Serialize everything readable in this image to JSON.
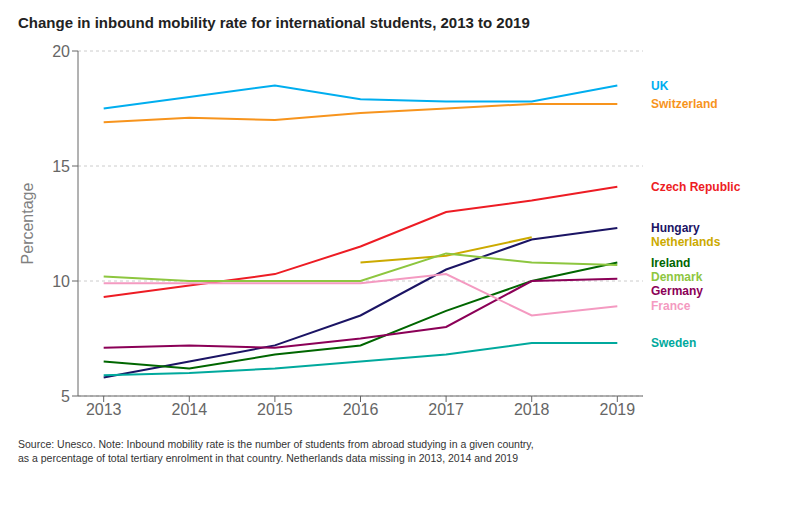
{
  "chart_data": {
    "type": "line",
    "title": "Change in inbound mobility rate for international students, 2013 to 2019",
    "ylabel": "Percentage",
    "x": [
      2013,
      2014,
      2015,
      2016,
      2017,
      2018,
      2019
    ],
    "xlim": [
      2012.7,
      2019.3
    ],
    "xticks": [
      2013,
      2014,
      2015,
      2016,
      2017,
      2018,
      2019
    ],
    "ylim": [
      5,
      20
    ],
    "yticks": [
      5,
      10,
      15,
      20
    ],
    "grid": true,
    "series": [
      {
        "name": "UK",
        "color": "#00aeef",
        "values": [
          17.5,
          18.0,
          18.5,
          17.9,
          17.8,
          17.8,
          18.5
        ]
      },
      {
        "name": "Switzerland",
        "color": "#f7941d",
        "values": [
          16.9,
          17.1,
          17.0,
          17.3,
          17.5,
          17.7,
          17.7
        ]
      },
      {
        "name": "Czech Republic",
        "color": "#ed1c24",
        "values": [
          9.3,
          9.8,
          10.3,
          11.5,
          13.0,
          13.5,
          14.1
        ]
      },
      {
        "name": "Hungary",
        "color": "#1b1464",
        "values": [
          5.8,
          6.5,
          7.2,
          8.5,
          10.5,
          11.8,
          12.3
        ]
      },
      {
        "name": "Netherlands",
        "color": "#ccaa00",
        "values": [
          null,
          null,
          null,
          10.8,
          11.1,
          11.9,
          null
        ]
      },
      {
        "name": "Ireland",
        "color": "#006600",
        "values": [
          6.5,
          6.2,
          6.8,
          7.2,
          8.7,
          10.0,
          10.8
        ]
      },
      {
        "name": "Denmark",
        "color": "#8dc63f",
        "values": [
          10.2,
          10.0,
          10.0,
          10.0,
          11.2,
          10.8,
          10.7
        ]
      },
      {
        "name": "Germany",
        "color": "#8b0057",
        "values": [
          7.1,
          7.2,
          7.1,
          7.5,
          8.0,
          10.0,
          10.1
        ]
      },
      {
        "name": "France",
        "color": "#f49ac1",
        "values": [
          9.9,
          9.9,
          9.9,
          9.9,
          10.3,
          8.5,
          8.9
        ]
      },
      {
        "name": "Sweden",
        "color": "#00a99d",
        "values": [
          5.9,
          6.0,
          6.2,
          6.5,
          6.8,
          7.3,
          7.3
        ]
      }
    ],
    "annotations": [
      "Source: Unesco. Note: Inbound mobility rate is the number of students from abroad studying in a given country,\nas a percentage of total tertiary enrolment in that country. Netherlands data missing in 2013, 2014 and 2019"
    ]
  }
}
